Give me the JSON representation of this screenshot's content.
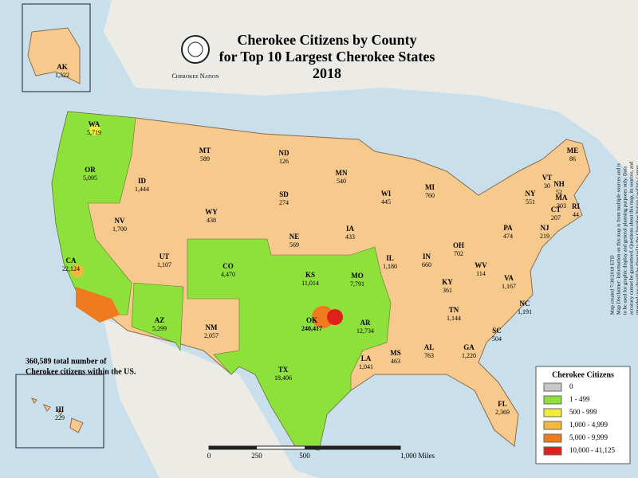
{
  "header": {
    "title_lines": [
      "Cherokee Citizens by County",
      "for Top 10 Largest Cherokee States",
      "2018"
    ],
    "logo_text": "Cherokee Nation"
  },
  "states": [
    {
      "abbr": "AK",
      "value": "1,322"
    },
    {
      "abbr": "WA",
      "value": "5,719"
    },
    {
      "abbr": "OR",
      "value": "5,095"
    },
    {
      "abbr": "CA",
      "value": "22,124"
    },
    {
      "abbr": "ID",
      "value": "1,444"
    },
    {
      "abbr": "MT",
      "value": "589"
    },
    {
      "abbr": "ND",
      "value": "126"
    },
    {
      "abbr": "MN",
      "value": "540"
    },
    {
      "abbr": "WI",
      "value": "445"
    },
    {
      "abbr": "MI",
      "value": "760"
    },
    {
      "abbr": "SD",
      "value": "274"
    },
    {
      "abbr": "WY",
      "value": "438"
    },
    {
      "abbr": "NV",
      "value": "1,700"
    },
    {
      "abbr": "UT",
      "value": "1,107"
    },
    {
      "abbr": "CO",
      "value": "4,470"
    },
    {
      "abbr": "NE",
      "value": "569"
    },
    {
      "abbr": "IA",
      "value": "433"
    },
    {
      "abbr": "IL",
      "value": "1,180"
    },
    {
      "abbr": "IN",
      "value": "660"
    },
    {
      "abbr": "OH",
      "value": "702"
    },
    {
      "abbr": "PA",
      "value": "474"
    },
    {
      "abbr": "NY",
      "value": "551"
    },
    {
      "abbr": "VT",
      "value": "30"
    },
    {
      "abbr": "NH",
      "value": "52"
    },
    {
      "abbr": "ME",
      "value": "86"
    },
    {
      "abbr": "MA",
      "value": "303"
    },
    {
      "abbr": "RI",
      "value": "44"
    },
    {
      "abbr": "CT",
      "value": "207"
    },
    {
      "abbr": "NJ",
      "value": "219"
    },
    {
      "abbr": "WV",
      "value": "114"
    },
    {
      "abbr": "VA",
      "value": "1,167"
    },
    {
      "abbr": "KY",
      "value": "361"
    },
    {
      "abbr": "TN",
      "value": "1,144"
    },
    {
      "abbr": "NC",
      "value": "1,191"
    },
    {
      "abbr": "SC",
      "value": "504"
    },
    {
      "abbr": "GA",
      "value": "1,220"
    },
    {
      "abbr": "AL",
      "value": "763"
    },
    {
      "abbr": "MS",
      "value": "463"
    },
    {
      "abbr": "LA",
      "value": "1,041"
    },
    {
      "abbr": "FL",
      "value": "2,369"
    },
    {
      "abbr": "AR",
      "value": "12,734"
    },
    {
      "abbr": "MO",
      "value": "7,791"
    },
    {
      "abbr": "KS",
      "value": "11,014"
    },
    {
      "abbr": "OK",
      "value": "240,417"
    },
    {
      "abbr": "TX",
      "value": "18,406"
    },
    {
      "abbr": "AZ",
      "value": "5,299"
    },
    {
      "abbr": "NM",
      "value": "2,057"
    },
    {
      "abbr": "HI",
      "value": "229"
    }
  ],
  "note": [
    "360,589 total number of",
    "Cherokee citizens within the US."
  ],
  "legend": {
    "title": "Cherokee Citizens",
    "items": [
      {
        "label": "0",
        "color": "#c8c8c8"
      },
      {
        "label": "1 - 499",
        "color": "#8ee13a"
      },
      {
        "label": "500 - 999",
        "color": "#f0ee3c"
      },
      {
        "label": "1,000 - 4,999",
        "color": "#f5b73c"
      },
      {
        "label": "5,000 - 9,999",
        "color": "#f07a1e"
      },
      {
        "label": "10,000 - 41,125",
        "color": "#e0201a"
      }
    ]
  },
  "scale": [
    "0",
    "250",
    "500",
    "1,000 Miles"
  ],
  "disclaimer": [
    "Map created 7/30/2018  ETD",
    "Map Disclaimer: Information on this map is from multiple sources and is",
    "to be used for graphic display and general planning purposes only. Data",
    "accuracy cannot be guaranteed. Questions about this map, its sources, and",
    "intended use should be directed to the Cherokee Nation GeoData Center."
  ]
}
